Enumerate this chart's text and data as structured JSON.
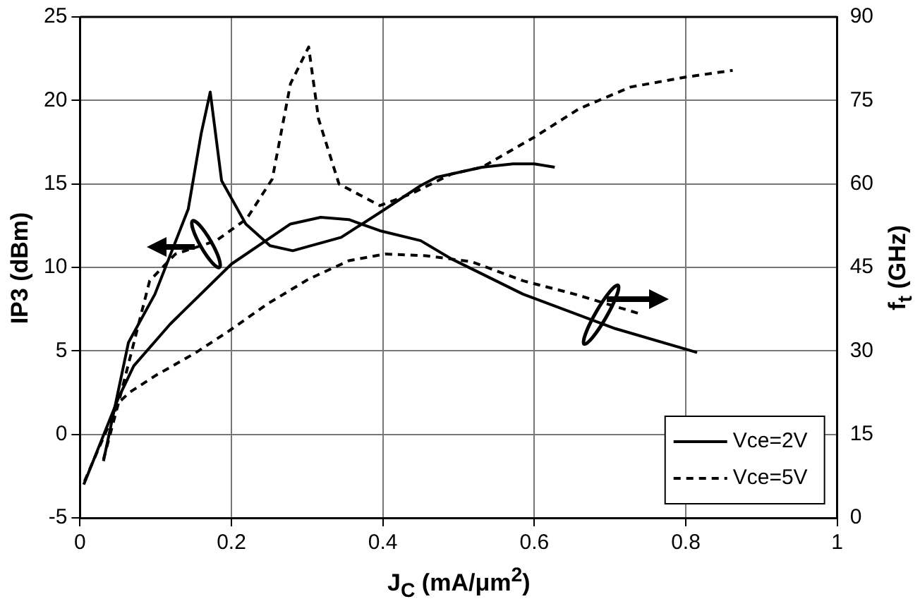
{
  "chart_data": {
    "type": "line",
    "xlabel": "J$_{C}$ (mA/μm$^{2}$)",
    "ylabel": "IP3 (dBm)",
    "y2label": "f$_{t}$ (GHz)",
    "xlim": [
      0,
      1
    ],
    "xticks": [
      0,
      0.2,
      0.4,
      0.6,
      0.8,
      1
    ],
    "ylim": [
      -5,
      25
    ],
    "yticks": [
      -5,
      0,
      5,
      10,
      15,
      20,
      25
    ],
    "y2lim": [
      0,
      90
    ],
    "y2ticks": [
      0,
      15,
      30,
      45,
      60,
      75,
      90
    ],
    "grid": true,
    "legend": "bottom right",
    "marker": "none",
    "series": [
      {
        "name": "Vce=2V",
        "color": "#000000",
        "line_style": "solid",
        "x": [
          0.031,
          0.064,
          0.099,
          0.143,
          0.16,
          0.172,
          0.187,
          0.219,
          0.251,
          0.281,
          0.345,
          0.4,
          0.45,
          0.471,
          0.531,
          0.572,
          0.6,
          0.627
        ],
        "values": [
          -1.6,
          5.5,
          8.4,
          13.5,
          18,
          20.5,
          15.2,
          12.6,
          11.3,
          11,
          11.8,
          13.4,
          14.9,
          15.4,
          16,
          16.2,
          16.2,
          16
        ]
      },
      {
        "name": "Vce=5V",
        "color": "#000000",
        "line_style": "dashed",
        "x": [
          0.031,
          0.051,
          0.092,
          0.126,
          0.18,
          0.22,
          0.254,
          0.278,
          0.302,
          0.315,
          0.342,
          0.396,
          0.437,
          0.491,
          0.531,
          0.6,
          0.659,
          0.727,
          0.8,
          0.862
        ],
        "values": [
          -1.5,
          1.9,
          9.2,
          10.8,
          11.6,
          12.9,
          15.3,
          21,
          23.2,
          18.9,
          15,
          13.7,
          14.4,
          15.6,
          16,
          17.8,
          19.5,
          20.8,
          21.4,
          21.8
        ]
      },
      {
        "color": "#000000",
        "line_style": "solid",
        "axis": "y2",
        "x": [
          0.005,
          0.051,
          0.071,
          0.119,
          0.2,
          0.278,
          0.318,
          0.355,
          0.396,
          0.45,
          0.491,
          0.585,
          0.707,
          0.815
        ],
        "values": [
          6,
          21.6,
          27.3,
          34.8,
          45.6,
          52.8,
          54,
          53.6,
          51.6,
          49.8,
          46.5,
          40.2,
          34,
          29.7
        ]
      },
      {
        "color": "#000000",
        "line_style": "dashed",
        "axis": "y2",
        "x": [
          0.006,
          0.051,
          0.065,
          0.099,
          0.152,
          0.197,
          0.247,
          0.302,
          0.355,
          0.403,
          0.457,
          0.518,
          0.585,
          0.653,
          0.741
        ],
        "values": [
          6.6,
          20.7,
          22.5,
          25.5,
          29.6,
          33.6,
          38.4,
          42.9,
          46.2,
          47.4,
          47.1,
          46,
          42.6,
          40.2,
          36.6
        ]
      }
    ]
  }
}
